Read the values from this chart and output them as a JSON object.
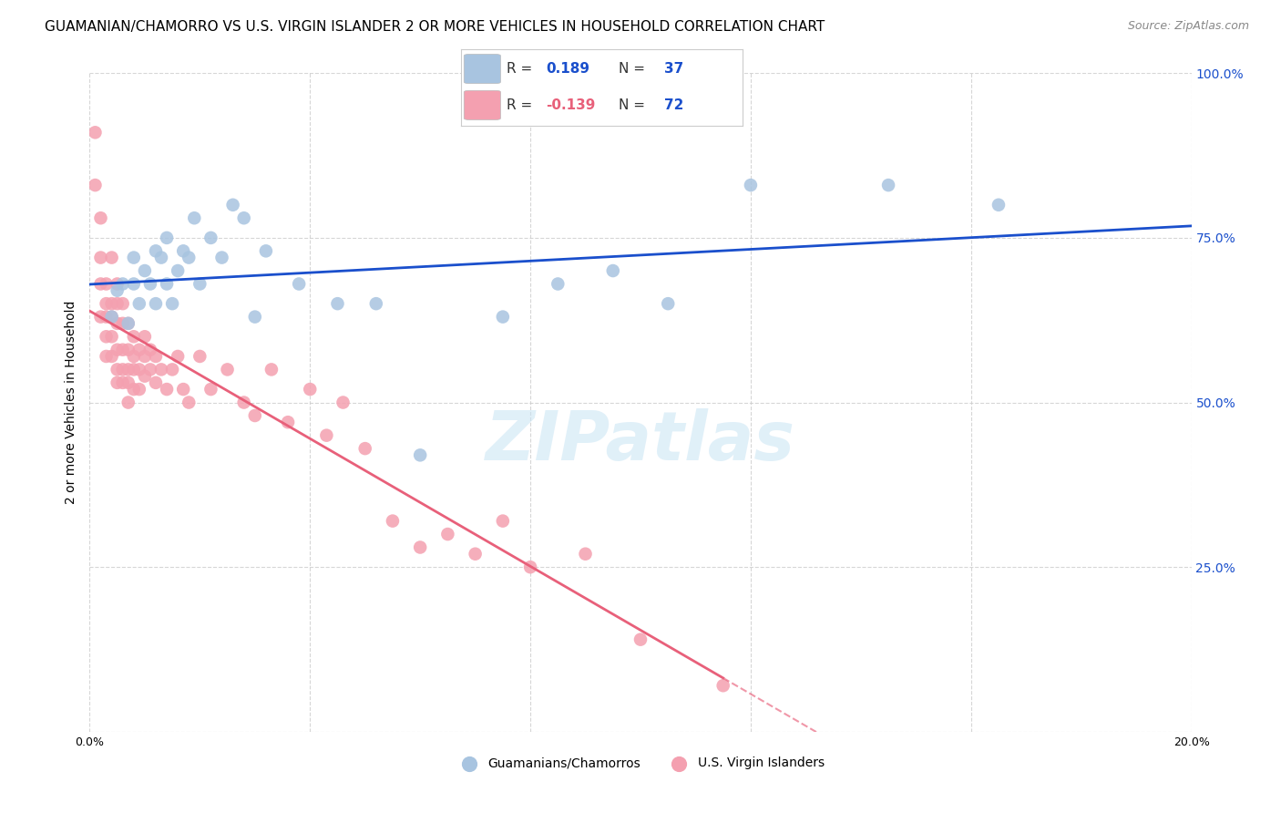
{
  "title": "GUAMANIAN/CHAMORRO VS U.S. VIRGIN ISLANDER 2 OR MORE VEHICLES IN HOUSEHOLD CORRELATION CHART",
  "source": "Source: ZipAtlas.com",
  "ylabel": "2 or more Vehicles in Household",
  "x_min": 0.0,
  "x_max": 0.2,
  "y_min": 0.0,
  "y_max": 1.0,
  "x_ticks": [
    0.0,
    0.04,
    0.08,
    0.12,
    0.16,
    0.2
  ],
  "x_tick_labels": [
    "0.0%",
    "",
    "",
    "",
    "",
    "20.0%"
  ],
  "y_ticks": [
    0.0,
    0.25,
    0.5,
    0.75,
    1.0
  ],
  "y_tick_labels": [
    "",
    "25.0%",
    "50.0%",
    "75.0%",
    "100.0%"
  ],
  "blue_color": "#a8c4e0",
  "pink_color": "#f4a0b0",
  "blue_line_color": "#1a4fcc",
  "pink_line_color": "#e8607a",
  "watermark": "ZIPatlas",
  "blue_R": "0.189",
  "blue_N": "37",
  "pink_R": "-0.139",
  "pink_N": "72",
  "blue_scatter_x": [
    0.004,
    0.005,
    0.006,
    0.007,
    0.008,
    0.008,
    0.009,
    0.01,
    0.011,
    0.012,
    0.012,
    0.013,
    0.014,
    0.014,
    0.015,
    0.016,
    0.017,
    0.018,
    0.019,
    0.02,
    0.022,
    0.024,
    0.026,
    0.028,
    0.03,
    0.032,
    0.038,
    0.045,
    0.052,
    0.06,
    0.075,
    0.085,
    0.095,
    0.105,
    0.12,
    0.145,
    0.165
  ],
  "blue_scatter_y": [
    0.63,
    0.67,
    0.68,
    0.62,
    0.72,
    0.68,
    0.65,
    0.7,
    0.68,
    0.73,
    0.65,
    0.72,
    0.68,
    0.75,
    0.65,
    0.7,
    0.73,
    0.72,
    0.78,
    0.68,
    0.75,
    0.72,
    0.8,
    0.78,
    0.63,
    0.73,
    0.68,
    0.65,
    0.65,
    0.42,
    0.63,
    0.68,
    0.7,
    0.65,
    0.83,
    0.83,
    0.8
  ],
  "pink_scatter_x": [
    0.001,
    0.001,
    0.002,
    0.002,
    0.002,
    0.002,
    0.003,
    0.003,
    0.003,
    0.003,
    0.003,
    0.004,
    0.004,
    0.004,
    0.004,
    0.004,
    0.005,
    0.005,
    0.005,
    0.005,
    0.005,
    0.005,
    0.006,
    0.006,
    0.006,
    0.006,
    0.006,
    0.007,
    0.007,
    0.007,
    0.007,
    0.007,
    0.008,
    0.008,
    0.008,
    0.008,
    0.009,
    0.009,
    0.009,
    0.01,
    0.01,
    0.01,
    0.011,
    0.011,
    0.012,
    0.012,
    0.013,
    0.014,
    0.015,
    0.016,
    0.017,
    0.018,
    0.02,
    0.022,
    0.025,
    0.028,
    0.03,
    0.033,
    0.036,
    0.04,
    0.043,
    0.046,
    0.05,
    0.055,
    0.06,
    0.065,
    0.07,
    0.075,
    0.08,
    0.09,
    0.1,
    0.115
  ],
  "pink_scatter_y": [
    0.91,
    0.83,
    0.78,
    0.72,
    0.68,
    0.63,
    0.65,
    0.63,
    0.6,
    0.57,
    0.68,
    0.72,
    0.65,
    0.6,
    0.57,
    0.63,
    0.68,
    0.65,
    0.62,
    0.58,
    0.55,
    0.53,
    0.65,
    0.62,
    0.58,
    0.55,
    0.53,
    0.62,
    0.58,
    0.55,
    0.53,
    0.5,
    0.6,
    0.57,
    0.55,
    0.52,
    0.58,
    0.55,
    0.52,
    0.6,
    0.57,
    0.54,
    0.58,
    0.55,
    0.57,
    0.53,
    0.55,
    0.52,
    0.55,
    0.57,
    0.52,
    0.5,
    0.57,
    0.52,
    0.55,
    0.5,
    0.48,
    0.55,
    0.47,
    0.52,
    0.45,
    0.5,
    0.43,
    0.32,
    0.28,
    0.3,
    0.27,
    0.32,
    0.25,
    0.27,
    0.14,
    0.07
  ],
  "grid_color": "#cccccc",
  "background_color": "#ffffff",
  "title_fontsize": 11,
  "axis_label_fontsize": 10,
  "tick_fontsize": 9,
  "source_fontsize": 9
}
